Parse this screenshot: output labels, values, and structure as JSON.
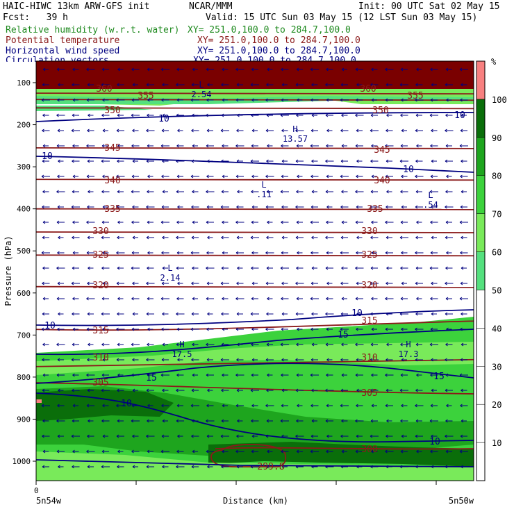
{
  "header": {
    "model": "HAIC-HIWC 13km ARW-GFS init",
    "org": "NCAR/MMM",
    "init": "Init: 00 UTC Sat 02 May 15",
    "fcst": "Fcst:   39 h",
    "valid": "Valid: 15 UTC Sun 03 May 15 (12 LST Sun 03 May 15)",
    "fields": [
      {
        "name": "Relative humidity (w.r.t. water)",
        "xy": "XY= 251.0,100.0 to 284.7,100.0",
        "color": "#1f8a1f"
      },
      {
        "name": "Potential temperature",
        "xy": "XY= 251.0,100.0 to 284.7,100.0",
        "color": "#8b1a1a"
      },
      {
        "name": "Horizontal wind speed",
        "xy": "XY= 251.0,100.0 to 284.7,100.0",
        "color": "#000080"
      },
      {
        "name": "Circulation vectors",
        "xy": "XY= 251.0,100.0 to 284.7,100.0",
        "color": "#000080"
      }
    ]
  },
  "chart_data": {
    "type": "heatmap",
    "ylabel": "Pressure (hPa)",
    "xlabel": "Distance (km)",
    "y_ticks": [
      100,
      200,
      300,
      400,
      500,
      600,
      700,
      800,
      900,
      1000
    ],
    "ylim": [
      1050,
      80
    ],
    "x_ticks": [
      "0"
    ],
    "x_end_labels": [
      "5n54w",
      "5n50w"
    ],
    "colorbar": {
      "unit": "%",
      "ticks": [
        10,
        20,
        30,
        40,
        50,
        60,
        70,
        80,
        90,
        100
      ],
      "colors": [
        "#ffffff",
        "#ffffff",
        "#ffffff",
        "#ffffff",
        "#ffffff",
        "#54e07e",
        "#79ea5a",
        "#3cd23c",
        "#1ea51e",
        "#0a6e0a",
        "#f88080"
      ]
    },
    "theta_contours": [
      {
        "value": "360",
        "p": 125
      },
      {
        "value": "355",
        "p": 140
      },
      {
        "value": "350",
        "p": 160
      },
      {
        "value": "345",
        "p": 255
      },
      {
        "value": "340",
        "p": 330
      },
      {
        "value": "335",
        "p": 400
      },
      {
        "value": "330",
        "p": 455
      },
      {
        "value": "325",
        "p": 510
      },
      {
        "value": "320",
        "p": 585
      },
      {
        "value": "315",
        "p": 690
      },
      {
        "value": "310",
        "p": 775
      },
      {
        "value": "305",
        "p": 830
      },
      {
        "value": "300",
        "p": 980
      },
      {
        "value": "299.8",
        "p": 1010
      }
    ],
    "wind_labels": [
      "10",
      "10",
      "10",
      "10",
      "10",
      "10",
      "15",
      "15",
      "15",
      "10",
      "10"
    ],
    "extrema": [
      {
        "kind": "H",
        "value": "13.57"
      },
      {
        "kind": "L",
        "value": ".11"
      },
      {
        "kind": "L",
        "value": ".54"
      },
      {
        "kind": "L",
        "value": "2.14"
      },
      {
        "kind": "H",
        "value": "17.5"
      },
      {
        "kind": "H",
        "value": "17.3"
      },
      {
        "kind": "L",
        "value": "2.54"
      }
    ]
  }
}
